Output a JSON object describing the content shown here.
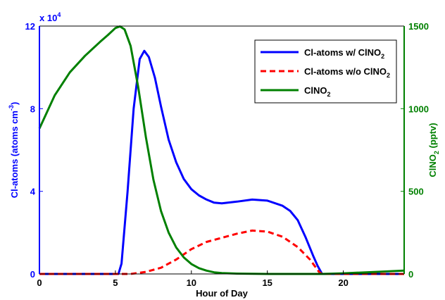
{
  "chart_data": {
    "type": "line",
    "xlabel": "Hour of Day",
    "xlim": [
      0,
      24
    ],
    "x_ticks": [
      "0",
      "5",
      "10",
      "15",
      "20"
    ],
    "y_left": {
      "label": "Cl-atoms (atoms cm",
      "label_sup": "-3",
      "label_end": ")",
      "lim": [
        0,
        12
      ],
      "ticks": [
        "0",
        "4",
        "8",
        "12"
      ],
      "multiplier_text": "x 10",
      "multiplier_exp": "4",
      "color": "#0000ff"
    },
    "y_right": {
      "label": "ClNO",
      "label_sub": "2",
      "label_end": " (pptv)",
      "lim": [
        0,
        1500
      ],
      "ticks": [
        "0",
        "500",
        "1000",
        "1500"
      ],
      "color": "#008000"
    },
    "legend_position": "top-right",
    "series": [
      {
        "name": "Cl-atoms w/ ClNO",
        "name_sub": "2",
        "axis": "left",
        "color": "#0000ff",
        "style": "solid",
        "points": [
          [
            0,
            0
          ],
          [
            5.2,
            0
          ],
          [
            5.4,
            0.5
          ],
          [
            5.8,
            4
          ],
          [
            6.2,
            8
          ],
          [
            6.6,
            10.4
          ],
          [
            6.9,
            10.8
          ],
          [
            7.2,
            10.5
          ],
          [
            7.6,
            9.5
          ],
          [
            8,
            8.1
          ],
          [
            8.5,
            6.5
          ],
          [
            9,
            5.4
          ],
          [
            9.5,
            4.6
          ],
          [
            10,
            4.1
          ],
          [
            10.5,
            3.8
          ],
          [
            11,
            3.6
          ],
          [
            11.5,
            3.45
          ],
          [
            12,
            3.42
          ],
          [
            13,
            3.5
          ],
          [
            14,
            3.6
          ],
          [
            15,
            3.55
          ],
          [
            16,
            3.3
          ],
          [
            16.5,
            3.05
          ],
          [
            17,
            2.6
          ],
          [
            17.5,
            1.8
          ],
          [
            18,
            0.9
          ],
          [
            18.3,
            0.4
          ],
          [
            18.6,
            0
          ],
          [
            24,
            0
          ]
        ]
      },
      {
        "name": "Cl-atoms w/o ClNO",
        "name_sub": "2",
        "axis": "left",
        "color": "#ff0000",
        "style": "dashed",
        "points": [
          [
            0,
            0
          ],
          [
            6,
            0
          ],
          [
            7,
            0.1
          ],
          [
            8,
            0.3
          ],
          [
            9,
            0.7
          ],
          [
            10,
            1.2
          ],
          [
            11,
            1.55
          ],
          [
            12,
            1.75
          ],
          [
            13,
            1.95
          ],
          [
            14,
            2.1
          ],
          [
            15,
            2.05
          ],
          [
            16,
            1.8
          ],
          [
            17,
            1.3
          ],
          [
            17.8,
            0.7
          ],
          [
            18.4,
            0.1
          ],
          [
            18.6,
            0
          ],
          [
            24,
            0
          ]
        ]
      },
      {
        "name": "ClNO",
        "name_sub": "2",
        "axis": "right",
        "color": "#008000",
        "style": "solid",
        "points": [
          [
            0,
            880
          ],
          [
            1,
            1080
          ],
          [
            2,
            1220
          ],
          [
            3,
            1320
          ],
          [
            4,
            1405
          ],
          [
            4.5,
            1445
          ],
          [
            5,
            1488
          ],
          [
            5.3,
            1498
          ],
          [
            5.6,
            1480
          ],
          [
            6,
            1380
          ],
          [
            6.5,
            1130
          ],
          [
            7,
            830
          ],
          [
            7.5,
            570
          ],
          [
            8,
            380
          ],
          [
            8.5,
            250
          ],
          [
            9,
            160
          ],
          [
            9.5,
            100
          ],
          [
            10,
            60
          ],
          [
            10.5,
            35
          ],
          [
            11,
            20
          ],
          [
            11.5,
            10
          ],
          [
            12,
            5
          ],
          [
            13,
            2
          ],
          [
            15,
            0
          ],
          [
            18.6,
            0
          ],
          [
            20,
            4
          ],
          [
            22,
            12
          ],
          [
            24,
            20
          ]
        ]
      }
    ]
  }
}
